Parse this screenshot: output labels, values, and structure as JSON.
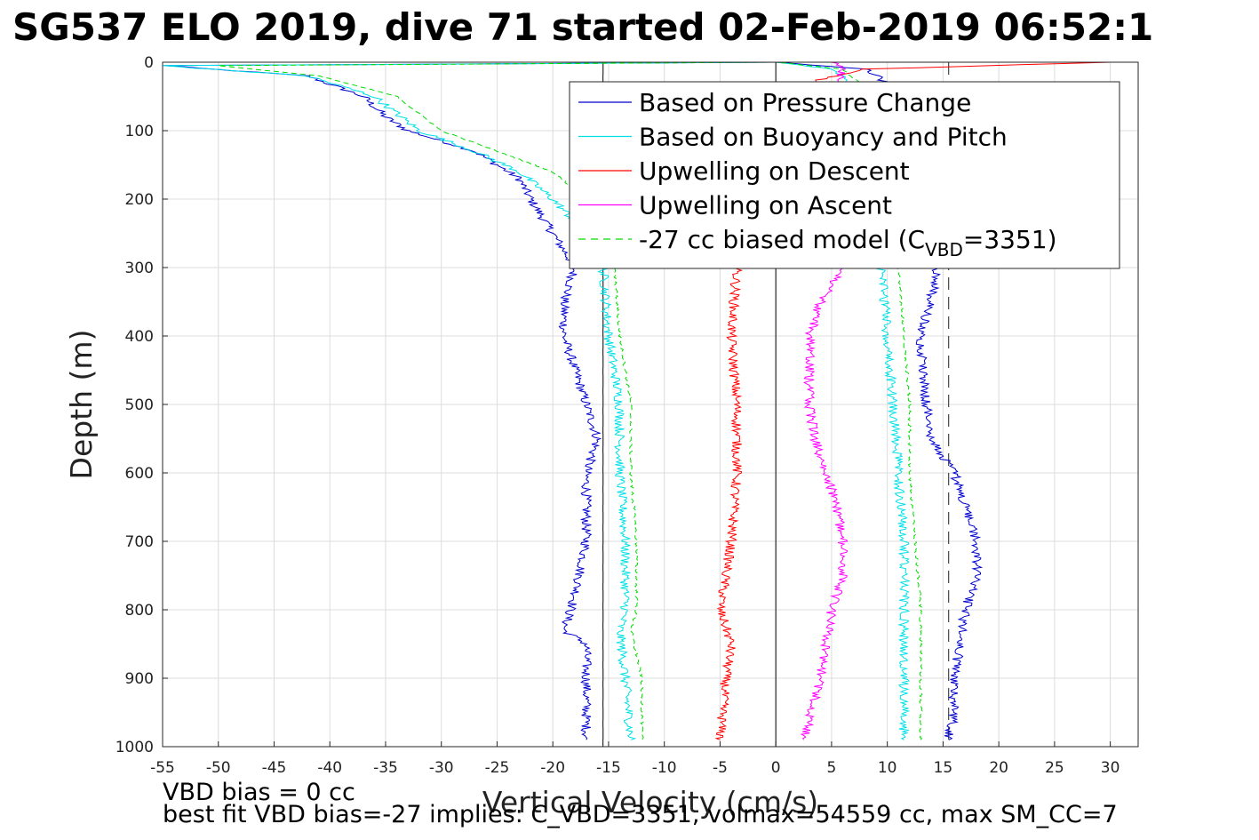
{
  "title": "SG537 ELO 2019, dive 71 started 02-Feb-2019 06:52:1",
  "footer": {
    "line1": "VBD bias = 0 cc",
    "line2": "best fit VBD bias=-27 implies: C_VBD=3351, volmax=54559 cc, max SM_CC=7"
  },
  "chart_data": {
    "type": "line",
    "xlabel": "Vertical Velocity (cm/s)",
    "ylabel": "Depth (m)",
    "xlim": [
      -55,
      32.5
    ],
    "ylim": [
      0,
      1000
    ],
    "y_inverted": true,
    "xticks": [
      -55,
      -50,
      -45,
      -40,
      -35,
      -30,
      -25,
      -20,
      -15,
      -10,
      -5,
      0,
      5,
      10,
      15,
      20,
      25,
      30
    ],
    "yticks": [
      0,
      100,
      200,
      300,
      400,
      500,
      600,
      700,
      800,
      900,
      1000
    ],
    "grid": true,
    "legend_position": "top-right",
    "reference_lines": {
      "solid_vertical": [
        -15.5,
        0
      ],
      "dashed_vertical": [
        -15.5,
        15.5
      ]
    },
    "series": [
      {
        "name": "Based on Pressure Change",
        "color": "#0000cc",
        "style": "solid",
        "descent": [
          [
            0,
            0
          ],
          [
            5,
            -55
          ],
          [
            20,
            -42
          ],
          [
            50,
            -37
          ],
          [
            80,
            -35
          ],
          [
            100,
            -33
          ],
          [
            130,
            -27
          ],
          [
            170,
            -23
          ],
          [
            200,
            -22
          ],
          [
            250,
            -20
          ],
          [
            300,
            -18
          ],
          [
            350,
            -19
          ],
          [
            400,
            -19
          ],
          [
            450,
            -18
          ],
          [
            500,
            -17
          ],
          [
            550,
            -16
          ],
          [
            600,
            -17
          ],
          [
            700,
            -17
          ],
          [
            780,
            -18
          ],
          [
            830,
            -19
          ],
          [
            850,
            -17
          ],
          [
            900,
            -17
          ],
          [
            990,
            -17
          ]
        ],
        "ascent": [
          [
            990,
            15.5
          ],
          [
            950,
            16
          ],
          [
            900,
            16
          ],
          [
            850,
            16.5
          ],
          [
            800,
            17
          ],
          [
            750,
            18
          ],
          [
            700,
            18
          ],
          [
            650,
            17
          ],
          [
            600,
            16
          ],
          [
            550,
            14
          ],
          [
            500,
            13.5
          ],
          [
            400,
            13
          ],
          [
            340,
            14
          ],
          [
            300,
            14.5
          ],
          [
            250,
            14
          ],
          [
            120,
            13
          ],
          [
            50,
            12
          ],
          [
            10,
            8
          ],
          [
            0,
            0
          ]
        ]
      },
      {
        "name": "Based on Buoyancy and Pitch",
        "color": "#00e0e8",
        "style": "solid",
        "descent": [
          [
            0,
            0
          ],
          [
            5,
            -55
          ],
          [
            20,
            -42
          ],
          [
            50,
            -36
          ],
          [
            100,
            -32
          ],
          [
            130,
            -27
          ],
          [
            160,
            -23
          ],
          [
            200,
            -20
          ],
          [
            250,
            -17
          ],
          [
            300,
            -15.5
          ],
          [
            400,
            -15
          ],
          [
            500,
            -14
          ],
          [
            600,
            -14
          ],
          [
            700,
            -13.5
          ],
          [
            800,
            -13.5
          ],
          [
            830,
            -14
          ],
          [
            900,
            -13.5
          ],
          [
            990,
            -13
          ]
        ],
        "ascent": [
          [
            990,
            11.5
          ],
          [
            900,
            11.5
          ],
          [
            800,
            11.5
          ],
          [
            700,
            11.5
          ],
          [
            600,
            11
          ],
          [
            500,
            10.5
          ],
          [
            400,
            10
          ],
          [
            300,
            9.5
          ],
          [
            200,
            10
          ],
          [
            50,
            8
          ],
          [
            10,
            5
          ],
          [
            0,
            0
          ]
        ]
      },
      {
        "name": "Upwelling on Descent",
        "color": "#ff0000",
        "style": "solid",
        "descent": [
          [
            0,
            30
          ],
          [
            10,
            8
          ],
          [
            50,
            -2
          ],
          [
            100,
            -4
          ],
          [
            200,
            -4
          ],
          [
            300,
            -3.5
          ],
          [
            400,
            -4
          ],
          [
            500,
            -3.5
          ],
          [
            600,
            -3.5
          ],
          [
            700,
            -4
          ],
          [
            800,
            -5
          ],
          [
            850,
            -4
          ],
          [
            900,
            -4.5
          ],
          [
            990,
            -5
          ]
        ],
        "ascent": []
      },
      {
        "name": "Upwelling on Ascent",
        "color": "#ff00ff",
        "style": "solid",
        "descent": [],
        "ascent": [
          [
            990,
            2.5
          ],
          [
            900,
            4
          ],
          [
            850,
            4.5
          ],
          [
            800,
            5
          ],
          [
            750,
            6
          ],
          [
            700,
            6
          ],
          [
            650,
            5.5
          ],
          [
            600,
            4.5
          ],
          [
            550,
            3.5
          ],
          [
            500,
            3
          ],
          [
            400,
            3
          ],
          [
            350,
            4
          ],
          [
            300,
            6
          ],
          [
            200,
            6
          ],
          [
            100,
            5
          ],
          [
            10,
            6
          ],
          [
            0,
            5
          ]
        ]
      },
      {
        "name": "-27 cc biased model (C",
        "name_sub": "VBD",
        "name_suffix": "=3351)",
        "color": "#00dd00",
        "style": "dashed",
        "descent": [
          [
            0,
            0
          ],
          [
            5,
            -50
          ],
          [
            20,
            -41
          ],
          [
            50,
            -34
          ],
          [
            100,
            -30
          ],
          [
            130,
            -25
          ],
          [
            160,
            -20
          ],
          [
            200,
            -17
          ],
          [
            250,
            -15
          ],
          [
            300,
            -14.5
          ],
          [
            400,
            -14
          ],
          [
            500,
            -13
          ],
          [
            600,
            -13
          ],
          [
            700,
            -12.5
          ],
          [
            800,
            -12.5
          ],
          [
            830,
            -13
          ],
          [
            900,
            -12
          ],
          [
            990,
            -12
          ]
        ],
        "ascent": [
          [
            990,
            13
          ],
          [
            900,
            13
          ],
          [
            800,
            13
          ],
          [
            700,
            12.5
          ],
          [
            600,
            12
          ],
          [
            500,
            12
          ],
          [
            400,
            11.5
          ],
          [
            300,
            11
          ],
          [
            200,
            10.5
          ],
          [
            50,
            9
          ],
          [
            10,
            6
          ],
          [
            0,
            0
          ]
        ]
      }
    ]
  }
}
